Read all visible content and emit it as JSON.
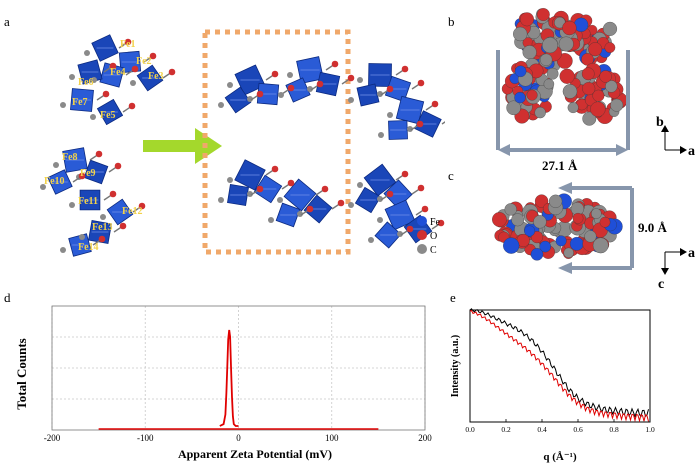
{
  "panels": {
    "a": {
      "letter": "a",
      "fe_labels": [
        "Fe1",
        "Fe2",
        "Fe3",
        "Fe4",
        "Fe5",
        "Fe6",
        "Fe7",
        "Fe8",
        "Fe9",
        "Fe10",
        "Fe11",
        "Fe12",
        "Fe13",
        "Fe14"
      ],
      "legend": [
        {
          "symbol": "Fe",
          "color": "#1f4fd8"
        },
        {
          "symbol": "O",
          "color": "#d03030"
        },
        {
          "symbol": "C",
          "color": "#8a8a8a"
        }
      ],
      "arrow_color": "#a4d82c",
      "box_color": "#f0a86a"
    },
    "b": {
      "letter": "b",
      "dimension": "27.1 Å",
      "axis_up": "b",
      "axis_right": "a"
    },
    "c": {
      "letter": "c",
      "dimension": "9.0 Å",
      "axis_down": "c",
      "axis_right": "a"
    },
    "d": {
      "letter": "d"
    },
    "e": {
      "letter": "e"
    }
  },
  "chart_data": [
    {
      "id": "d",
      "type": "line",
      "xlabel": "Apparent Zeta Potential (mV)",
      "ylabel": "Total Counts",
      "xlim": [
        -200,
        200
      ],
      "xticks": [
        -200,
        -100,
        0,
        100,
        200
      ],
      "grid": true,
      "series": [
        {
          "color": "#e00000",
          "x": [
            -150,
            -30,
            -20,
            -16,
            -14,
            -13,
            -12,
            -11,
            -10,
            -9,
            -8,
            -7,
            -6,
            -5,
            -3,
            0,
            20,
            150
          ],
          "y": [
            0,
            0,
            0,
            0.02,
            0.12,
            0.35,
            0.62,
            0.9,
            1.0,
            0.93,
            0.62,
            0.3,
            0.1,
            0.02,
            0,
            0,
            0,
            0
          ]
        }
      ]
    },
    {
      "id": "e",
      "type": "line",
      "xlabel": "q (Å⁻¹)",
      "ylabel": "Intensity (a.u.)",
      "xlim": [
        0.0,
        1.0
      ],
      "xticks": [
        "0.0",
        "0.2",
        "0.4",
        "0.6",
        "0.8",
        "1.0"
      ],
      "series": [
        {
          "color": "#000000",
          "x": [
            0.0,
            0.05,
            0.1,
            0.15,
            0.2,
            0.25,
            0.3,
            0.35,
            0.4,
            0.45,
            0.5,
            0.55,
            0.6,
            0.65,
            0.7,
            0.75,
            0.8,
            0.85,
            0.9,
            0.95,
            1.0
          ],
          "y": [
            1.0,
            0.99,
            0.96,
            0.92,
            0.88,
            0.84,
            0.79,
            0.72,
            0.63,
            0.52,
            0.4,
            0.29,
            0.21,
            0.16,
            0.13,
            0.11,
            0.1,
            0.09,
            0.085,
            0.08,
            0.08
          ]
        },
        {
          "color": "#e00000",
          "x": [
            0.0,
            0.05,
            0.1,
            0.15,
            0.2,
            0.25,
            0.3,
            0.35,
            0.4,
            0.45,
            0.5,
            0.55,
            0.6,
            0.65,
            0.7,
            0.75,
            0.8,
            0.85,
            0.9,
            0.95,
            1.0
          ],
          "y": [
            0.99,
            0.96,
            0.91,
            0.85,
            0.79,
            0.73,
            0.67,
            0.6,
            0.52,
            0.43,
            0.33,
            0.24,
            0.17,
            0.12,
            0.09,
            0.075,
            0.065,
            0.055,
            0.05,
            0.045,
            0.04
          ]
        }
      ]
    }
  ]
}
